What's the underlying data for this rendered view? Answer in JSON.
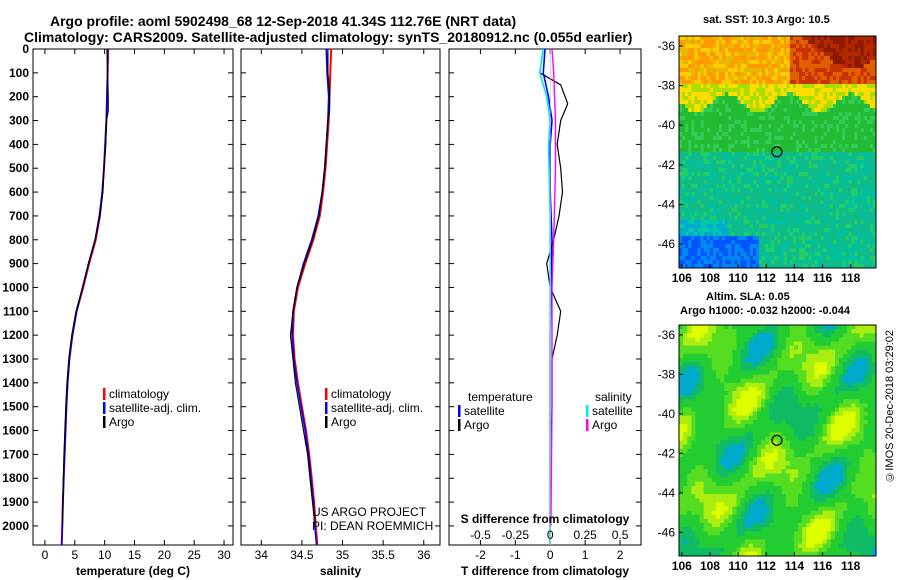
{
  "header": {
    "line1": "Argo profile: aoml 5902498_68 12-Sep-2018 41.34S 112.76E (NRT data)",
    "line2": "Climatology: CARS2009. Satellite-adjusted climatology: synTS_20180912.nc (0.055d earlier)"
  },
  "colors": {
    "climatology": "#ff0000",
    "satellite": "#0000ff",
    "argo": "#000000",
    "cyan": "#00e5ee",
    "magenta": "#ff00ff"
  },
  "chart_data": [
    {
      "type": "line",
      "id": "temperature",
      "xlabel": "temperature (deg C)",
      "xticks": [
        0,
        5,
        10,
        15,
        20,
        25,
        30
      ],
      "xlim": [
        -2,
        31.5
      ],
      "ylim": [
        0,
        2080
      ],
      "yticks": [
        0,
        100,
        200,
        300,
        400,
        500,
        600,
        700,
        800,
        900,
        1000,
        1100,
        1200,
        1300,
        1400,
        1500,
        1600,
        1700,
        1800,
        1900,
        2000
      ],
      "legend": [
        "climatology",
        "satellite-adj. clim.",
        "Argo"
      ],
      "series": [
        {
          "name": "climatology",
          "color": "#ff0000",
          "width": 2,
          "points": [
            [
              10.6,
              0
            ],
            [
              10.5,
              100
            ],
            [
              10.4,
              200
            ],
            [
              10.3,
              300
            ],
            [
              10.1,
              400
            ],
            [
              9.9,
              500
            ],
            [
              9.6,
              600
            ],
            [
              9.2,
              700
            ],
            [
              8.5,
              800
            ],
            [
              7.4,
              900
            ],
            [
              6.4,
              1000
            ],
            [
              5.3,
              1100
            ],
            [
              4.6,
              1200
            ],
            [
              4.1,
              1300
            ],
            [
              3.8,
              1400
            ],
            [
              3.6,
              1500
            ],
            [
              3.45,
              1600
            ],
            [
              3.3,
              1700
            ],
            [
              3.15,
              1800
            ],
            [
              3.0,
              1900
            ],
            [
              2.9,
              2000
            ],
            [
              2.8,
              2080
            ]
          ]
        },
        {
          "name": "satellite-adj. clim.",
          "color": "#0000ff",
          "width": 1.6,
          "points": [
            [
              10.5,
              0
            ],
            [
              10.5,
              100
            ],
            [
              10.4,
              200
            ],
            [
              10.3,
              300
            ],
            [
              10.1,
              400
            ],
            [
              9.9,
              500
            ],
            [
              9.6,
              600
            ],
            [
              9.1,
              700
            ],
            [
              8.4,
              800
            ],
            [
              7.3,
              900
            ],
            [
              6.3,
              1000
            ],
            [
              5.3,
              1100
            ],
            [
              4.6,
              1200
            ],
            [
              4.1,
              1300
            ],
            [
              3.8,
              1400
            ],
            [
              3.6,
              1500
            ],
            [
              3.45,
              1600
            ],
            [
              3.3,
              1700
            ],
            [
              3.15,
              1800
            ],
            [
              3.0,
              1900
            ],
            [
              2.9,
              2000
            ],
            [
              2.8,
              2080
            ]
          ]
        },
        {
          "name": "Argo",
          "color": "#000000",
          "width": 1.2,
          "points": [
            [
              10.4,
              0
            ],
            [
              10.5,
              100
            ],
            [
              10.6,
              200
            ],
            [
              10.6,
              260
            ],
            [
              10.3,
              300
            ],
            [
              10.2,
              400
            ],
            [
              9.9,
              500
            ],
            [
              9.7,
              600
            ],
            [
              9.2,
              700
            ],
            [
              8.4,
              800
            ],
            [
              7.3,
              900
            ],
            [
              6.3,
              1000
            ],
            [
              5.2,
              1100
            ],
            [
              4.5,
              1200
            ],
            [
              4.0,
              1300
            ],
            [
              3.7,
              1400
            ],
            [
              3.5,
              1500
            ],
            [
              3.35,
              1600
            ],
            [
              3.2,
              1700
            ],
            [
              3.1,
              1800
            ],
            [
              3.0,
              1900
            ],
            [
              2.9,
              1990
            ]
          ]
        }
      ]
    },
    {
      "type": "line",
      "id": "salinity",
      "xlabel": "salinity",
      "xticks": [
        34,
        34.5,
        35,
        35.5,
        36
      ],
      "xlim": [
        33.75,
        36.2
      ],
      "ylim": [
        0,
        2080
      ],
      "legend": [
        "climatology",
        "satellite-adj. clim.",
        "Argo"
      ],
      "annotation": [
        "US ARGO PROJECT",
        "PI: DEAN ROEMMICH"
      ],
      "series": [
        {
          "name": "climatology",
          "color": "#ff0000",
          "width": 2,
          "points": [
            [
              34.86,
              0
            ],
            [
              34.85,
              100
            ],
            [
              34.84,
              200
            ],
            [
              34.83,
              300
            ],
            [
              34.81,
              400
            ],
            [
              34.79,
              500
            ],
            [
              34.76,
              600
            ],
            [
              34.72,
              700
            ],
            [
              34.64,
              800
            ],
            [
              34.54,
              900
            ],
            [
              34.45,
              1000
            ],
            [
              34.4,
              1100
            ],
            [
              34.39,
              1200
            ],
            [
              34.41,
              1300
            ],
            [
              34.45,
              1400
            ],
            [
              34.5,
              1500
            ],
            [
              34.55,
              1600
            ],
            [
              34.59,
              1700
            ],
            [
              34.62,
              1800
            ],
            [
              34.65,
              1900
            ],
            [
              34.67,
              2000
            ],
            [
              34.69,
              2080
            ]
          ]
        },
        {
          "name": "satellite-adj. clim.",
          "color": "#0000ff",
          "width": 1.6,
          "points": [
            [
              34.8,
              0
            ],
            [
              34.81,
              100
            ],
            [
              34.83,
              200
            ],
            [
              34.82,
              300
            ],
            [
              34.8,
              400
            ],
            [
              34.78,
              500
            ],
            [
              34.75,
              600
            ],
            [
              34.7,
              700
            ],
            [
              34.62,
              800
            ],
            [
              34.52,
              900
            ],
            [
              34.44,
              1000
            ],
            [
              34.39,
              1100
            ],
            [
              34.38,
              1200
            ],
            [
              34.4,
              1300
            ],
            [
              34.44,
              1400
            ],
            [
              34.49,
              1500
            ],
            [
              34.54,
              1600
            ],
            [
              34.58,
              1700
            ],
            [
              34.61,
              1800
            ],
            [
              34.64,
              1900
            ],
            [
              34.66,
              2000
            ],
            [
              34.68,
              2080
            ]
          ]
        },
        {
          "name": "Argo",
          "color": "#000000",
          "width": 1.2,
          "points": [
            [
              34.82,
              0
            ],
            [
              34.82,
              100
            ],
            [
              34.84,
              180
            ],
            [
              34.84,
              260
            ],
            [
              34.82,
              300
            ],
            [
              34.8,
              400
            ],
            [
              34.78,
              500
            ],
            [
              34.75,
              600
            ],
            [
              34.71,
              700
            ],
            [
              34.63,
              800
            ],
            [
              34.53,
              900
            ],
            [
              34.44,
              1000
            ],
            [
              34.39,
              1100
            ],
            [
              34.36,
              1200
            ],
            [
              34.39,
              1300
            ],
            [
              34.42,
              1400
            ],
            [
              34.47,
              1500
            ],
            [
              34.52,
              1600
            ],
            [
              34.57,
              1700
            ],
            [
              34.6,
              1800
            ],
            [
              34.63,
              1900
            ],
            [
              34.66,
              1990
            ]
          ]
        }
      ]
    },
    {
      "type": "line",
      "id": "difference",
      "xlabel": "T difference from climatology",
      "xticks": [
        -2,
        -1,
        0,
        1,
        2
      ],
      "xlim": [
        -2.9,
        2.6
      ],
      "sublabel": "S difference from climatology",
      "sticks": [
        "-0.5",
        "-0.25",
        "0",
        "0.25",
        "0.5"
      ],
      "ylim": [
        0,
        2080
      ],
      "legend_left": [
        "temperature",
        "satellite",
        "Argo"
      ],
      "legend_right": [
        "salinity",
        "satellite",
        "Argo"
      ],
      "series": [
        {
          "name": "satellite",
          "color": "#0000ff",
          "width": 1.6,
          "points": [
            [
              -0.15,
              -10
            ],
            [
              -0.2,
              100
            ],
            [
              -0.05,
              200
            ],
            [
              0.05,
              300
            ],
            [
              0.0,
              400
            ],
            [
              0.0,
              600
            ],
            [
              0.05,
              800
            ],
            [
              0.02,
              1000
            ],
            [
              0.0,
              1200
            ],
            [
              0.0,
              1500
            ],
            [
              0.0,
              2000
            ],
            [
              0.0,
              2080
            ]
          ]
        },
        {
          "name": "Argo",
          "color": "#000000",
          "width": 1.2,
          "points": [
            [
              -0.2,
              -10
            ],
            [
              -0.3,
              100
            ],
            [
              0.3,
              150
            ],
            [
              0.5,
              230
            ],
            [
              0.3,
              300
            ],
            [
              0.2,
              400
            ],
            [
              0.3,
              500
            ],
            [
              0.35,
              600
            ],
            [
              0.25,
              700
            ],
            [
              0.1,
              800
            ],
            [
              -0.1,
              900
            ],
            [
              0.0,
              1000
            ],
            [
              0.3,
              1100
            ],
            [
              0.2,
              1200
            ],
            [
              0.05,
              1300
            ],
            [
              0.05,
              1500
            ],
            [
              0.02,
              1700
            ],
            [
              0.0,
              1990
            ]
          ]
        },
        {
          "name": "satellite",
          "color": "#00e5ee",
          "width": 1.6,
          "points": [
            [
              -0.2,
              -10
            ],
            [
              -0.3,
              100
            ],
            [
              -0.1,
              200
            ],
            [
              0.0,
              300
            ],
            [
              -0.05,
              400
            ],
            [
              0.0,
              700
            ],
            [
              0.0,
              1000
            ],
            [
              0.0,
              1400
            ],
            [
              0.0,
              2080
            ]
          ]
        },
        {
          "name": "Argo",
          "color": "#ff00ff",
          "width": 1.4,
          "points": [
            [
              0.05,
              -10
            ],
            [
              0.1,
              100
            ],
            [
              0.15,
              300
            ],
            [
              0.15,
              500
            ],
            [
              0.1,
              800
            ],
            [
              0.05,
              1000
            ],
            [
              0.05,
              1500
            ],
            [
              0.02,
              2000
            ]
          ]
        }
      ]
    },
    {
      "type": "heatmap",
      "id": "sst-map",
      "title": "sat. SST: 10.3  Argo: 10.5",
      "xticks": [
        106,
        108,
        110,
        112,
        114,
        116,
        118
      ],
      "yticks": [
        -36,
        -38,
        -40,
        -42,
        -44,
        -46
      ],
      "xlim": [
        105.8,
        119.8
      ],
      "ylim": [
        -47.2,
        -35.5
      ],
      "marker": [
        112.76,
        -41.34
      ]
    },
    {
      "type": "heatmap",
      "id": "sla-map",
      "title": "Altim. SLA: 0.05",
      "subtitle": "Argo h1000: -0.032  h2000: -0.044",
      "xticks": [
        106,
        108,
        110,
        112,
        114,
        116,
        118
      ],
      "yticks": [
        -36,
        -38,
        -40,
        -42,
        -44,
        -46
      ],
      "xlim": [
        105.8,
        119.8
      ],
      "ylim": [
        -47.2,
        -35.5
      ],
      "marker": [
        112.76,
        -41.34
      ]
    }
  ],
  "credit": "©IMOS 20-Dec-2018 03:29:02"
}
